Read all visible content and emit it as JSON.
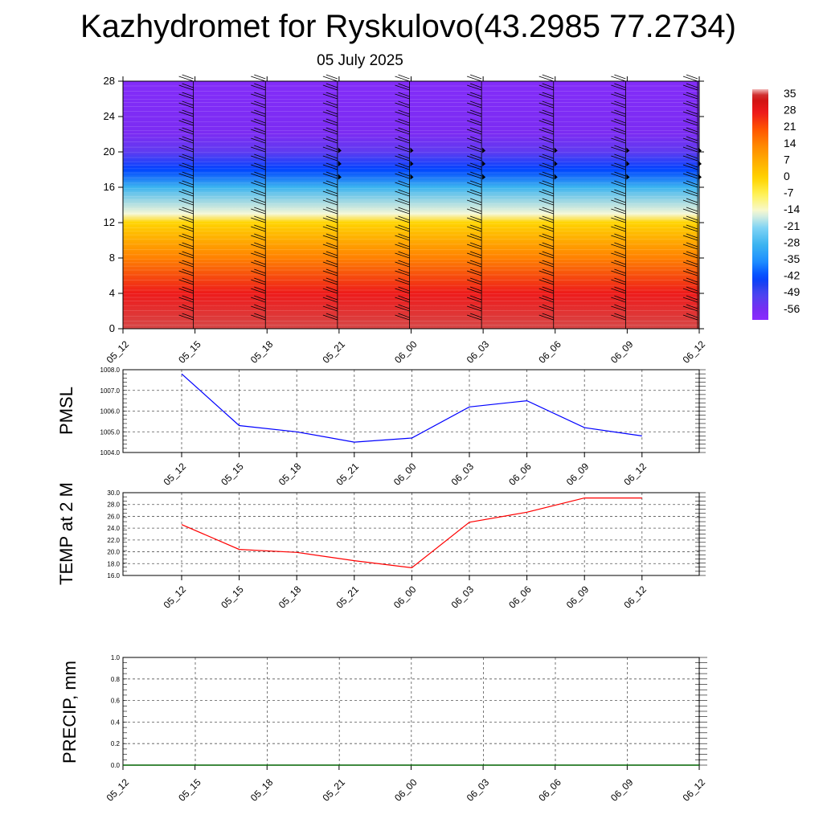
{
  "title": "Kazhydromet for Ryskulovo(43.2985 77.2734)",
  "subtitle": "05 July 2025",
  "chart_data": [
    {
      "type": "heatmap",
      "name": "temperature-height cross-section",
      "x": [
        "05_12",
        "05_15",
        "05_18",
        "05_21",
        "06_00",
        "06_03",
        "06_06",
        "06_09",
        "06_12"
      ],
      "y_ticks": [
        0,
        4,
        8,
        12,
        16,
        20,
        24,
        28
      ],
      "ylim": [
        0,
        28
      ],
      "colorbar": {
        "labels": [
          "35",
          "28",
          "21",
          "14",
          "7",
          "0",
          "-7",
          "-14",
          "-21",
          "-28",
          "-35",
          "-42",
          "-49",
          "-56"
        ],
        "range": [
          -60,
          38
        ]
      },
      "temperature_profile_by_height": [
        {
          "h": 0,
          "t": 36
        },
        {
          "h": 4,
          "t": 28
        },
        {
          "h": 8,
          "t": 15
        },
        {
          "h": 12,
          "t": 0
        },
        {
          "h": 13,
          "t": -14
        },
        {
          "h": 16,
          "t": -28
        },
        {
          "h": 18,
          "t": -42
        },
        {
          "h": 20,
          "t": -52
        },
        {
          "h": 22,
          "t": -56
        },
        {
          "h": 28,
          "t": -58
        }
      ],
      "wind_barb_heights": [
        1,
        2,
        3,
        4,
        5,
        6,
        7,
        8,
        9,
        10,
        11,
        12,
        13,
        14,
        15,
        16,
        17,
        18,
        19,
        20,
        21,
        22,
        23,
        24,
        25,
        26,
        27,
        28
      ],
      "wind_barb_columns": [
        "05_15",
        "05_18",
        "05_21",
        "06_00",
        "06_03",
        "06_06",
        "06_09",
        "06_12"
      ],
      "grid": false
    },
    {
      "type": "line",
      "ylabel": "PMSL",
      "categories": [
        "05_12",
        "05_15",
        "05_18",
        "05_21",
        "06_00",
        "06_03",
        "06_06",
        "06_09",
        "06_12"
      ],
      "values": [
        1007.8,
        1005.3,
        1005.0,
        1004.5,
        1004.7,
        1006.2,
        1006.5,
        1005.2,
        1004.8
      ],
      "y_ticks": [
        "1004.0",
        "1005.0",
        "1006.0",
        "1007.0",
        "1008.0"
      ],
      "ylim": [
        1004.0,
        1008.0
      ],
      "color": "#0000ff",
      "grid": true
    },
    {
      "type": "line",
      "ylabel": "TEMP at 2 M",
      "categories": [
        "05_12",
        "05_15",
        "05_18",
        "05_21",
        "06_00",
        "06_03",
        "06_06",
        "06_09",
        "06_12"
      ],
      "values": [
        24.6,
        20.4,
        19.9,
        18.5,
        17.3,
        25.0,
        26.7,
        29.1,
        29.1
      ],
      "y_ticks": [
        "16.0",
        "18.0",
        "20.0",
        "22.0",
        "24.0",
        "26.0",
        "28.0",
        "30.0"
      ],
      "ylim": [
        16.0,
        30.0
      ],
      "color": "#ff0000",
      "grid": true
    },
    {
      "type": "line",
      "ylabel": "PRECIP, mm",
      "categories": [
        "05_12",
        "05_15",
        "05_18",
        "05_21",
        "06_00",
        "06_03",
        "06_06",
        "06_09",
        "06_12"
      ],
      "values": [
        0,
        0,
        0,
        0,
        0,
        0,
        0,
        0,
        0
      ],
      "y_ticks": [
        "0.0",
        "0.2",
        "0.4",
        "0.6",
        "0.8",
        "1.0"
      ],
      "ylim": [
        0.0,
        1.0
      ],
      "color": "#006400",
      "grid": true
    }
  ]
}
